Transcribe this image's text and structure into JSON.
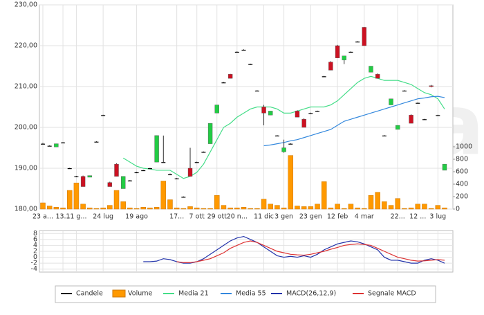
{
  "watermark": "teleborsa",
  "chart_data": [
    {
      "type": "candlestick",
      "categories": [
        "23 a...",
        null,
        null,
        "13...",
        null,
        "11 g...",
        null,
        null,
        null,
        "24 lug",
        null,
        null,
        null,
        null,
        "19 ago",
        null,
        null,
        null,
        null,
        null,
        "17...",
        null,
        null,
        "7 ott",
        null,
        null,
        "29 ott",
        null,
        null,
        "20 n...",
        null,
        null,
        null,
        "11 dic",
        null,
        null,
        "3 gen",
        null,
        null,
        null,
        "23 gen",
        null,
        null,
        null,
        "12 feb",
        null,
        null,
        null,
        "4 mar",
        null,
        null,
        null,
        null,
        "22...",
        null,
        null,
        "12 ...",
        null,
        null,
        "3 lug",
        null
      ],
      "series": [
        {
          "name": "Candele",
          "type": "candlestick",
          "color": "#000000",
          "up_color": "#22cc44",
          "down_color": "#cc1122",
          "open": [
            196,
            195.5,
            195.2,
            196.3,
            190,
            188,
            188,
            187.8,
            196.5,
            203,
            186.5,
            191,
            185,
            187,
            189,
            189.5,
            190,
            191.5,
            191.5,
            188.5,
            187.5,
            183,
            190,
            191.5,
            194,
            196,
            203.5,
            211,
            213,
            218.5,
            219,
            215.5,
            209,
            205,
            203,
            198,
            194,
            196,
            204,
            202,
            203.5,
            204,
            212.5,
            216,
            220,
            216.5,
            218.5,
            221,
            224.5,
            213.5,
            213,
            198,
            205.5,
            199.5,
            209,
            203,
            206,
            202,
            210.2,
            203,
            189.5
          ],
          "high": [
            196.2,
            195.6,
            196,
            196.4,
            190.1,
            188.1,
            188.2,
            188.2,
            196.6,
            203.1,
            186.7,
            191.2,
            188,
            187.1,
            189.1,
            189.6,
            190.1,
            198,
            198,
            188.7,
            187.6,
            183.1,
            195,
            191.6,
            194.1,
            201,
            205.5,
            211.1,
            213.1,
            218.6,
            219.1,
            215.6,
            209.1,
            205.5,
            204,
            198.1,
            197,
            196.1,
            204.2,
            202.2,
            203.6,
            204.1,
            212.6,
            216.2,
            220.2,
            217.5,
            218.6,
            221.1,
            224.6,
            215,
            213.2,
            198.1,
            207,
            200.5,
            209.1,
            203.2,
            206.1,
            202.1,
            210.4,
            203.1,
            191
          ],
          "low": [
            195.8,
            195.4,
            195.2,
            196.2,
            189.9,
            187.8,
            185.5,
            187.8,
            196.4,
            202.9,
            185.5,
            188,
            185,
            186.9,
            188.9,
            189.4,
            189.9,
            191.5,
            191.5,
            188.3,
            187.4,
            182.9,
            188,
            191.4,
            193.9,
            196,
            203.5,
            210.9,
            212,
            218.4,
            218.9,
            215.4,
            208.9,
            200.5,
            203,
            197.9,
            193.8,
            195.9,
            202.5,
            200,
            203.4,
            203.9,
            212.4,
            214,
            217,
            215.5,
            218.4,
            220.9,
            220,
            213.5,
            212,
            197.9,
            205.5,
            199.5,
            208.9,
            201,
            205.9,
            201.9,
            209.8,
            202.9,
            189.5
          ],
          "close": [
            196,
            195.5,
            196,
            196.3,
            190,
            188,
            185.5,
            188.2,
            196.5,
            203,
            185.5,
            188,
            188,
            187,
            189,
            189.5,
            190,
            198,
            191.5,
            188.5,
            187.5,
            183,
            188,
            191.5,
            194,
            201,
            205.5,
            211,
            212,
            218.5,
            219,
            215.5,
            209,
            203.5,
            204,
            198,
            195,
            196,
            202.5,
            200,
            203.5,
            204,
            212.5,
            214,
            217,
            217.5,
            218.5,
            221,
            220,
            215,
            212,
            198,
            207,
            200.5,
            209,
            201,
            206,
            202,
            210,
            203,
            191
          ]
        },
        {
          "name": "Volume",
          "type": "bar",
          "axis": "y2",
          "color": "#ff9900",
          "values": [
            100,
            50,
            30,
            20,
            300,
            420,
            80,
            20,
            10,
            20,
            60,
            300,
            120,
            20,
            10,
            30,
            20,
            30,
            450,
            150,
            20,
            10,
            40,
            20,
            10,
            10,
            220,
            60,
            20,
            20,
            30,
            10,
            10,
            160,
            80,
            60,
            20,
            860,
            50,
            40,
            40,
            80,
            440,
            20,
            80,
            10,
            80,
            20,
            10,
            220,
            270,
            120,
            60,
            170,
            10,
            20,
            80,
            80,
            10,
            60,
            20
          ]
        },
        {
          "name": "Media 21",
          "type": "line",
          "color": "#44dd88",
          "values": [
            null,
            null,
            null,
            null,
            null,
            null,
            null,
            null,
            null,
            null,
            null,
            null,
            192.5,
            191.5,
            190.5,
            190,
            189.8,
            189.5,
            189.5,
            189.5,
            188.5,
            187.5,
            188,
            189,
            191,
            194,
            197,
            200,
            201,
            202.5,
            203.5,
            204.5,
            205,
            205,
            205,
            204.5,
            203.5,
            203.5,
            204,
            204.5,
            205,
            205,
            205,
            205.5,
            206.5,
            208,
            209.5,
            211,
            212,
            212.5,
            212,
            211.5,
            211.5,
            211.5,
            211,
            210.5,
            209.5,
            208.5,
            208,
            207,
            204.5
          ]
        },
        {
          "name": "Media 55",
          "type": "line",
          "color": "#3388dd",
          "values": [
            null,
            null,
            null,
            null,
            null,
            null,
            null,
            null,
            null,
            null,
            null,
            null,
            null,
            null,
            null,
            null,
            null,
            null,
            null,
            null,
            null,
            null,
            null,
            null,
            null,
            null,
            null,
            null,
            null,
            null,
            null,
            null,
            null,
            195.5,
            195.7,
            196,
            196.3,
            196.7,
            197,
            197.5,
            198,
            198.5,
            199,
            199.5,
            200.5,
            201.5,
            202,
            202.5,
            203,
            203.5,
            204,
            204.5,
            205,
            205.5,
            206,
            206.5,
            207,
            207.2,
            207.5,
            207.6,
            207.3
          ]
        }
      ],
      "ylim": [
        180,
        230
      ],
      "yticks": [
        {
          "value": 180,
          "label": "180,00"
        },
        {
          "value": 190,
          "label": "190,00"
        },
        {
          "value": 200,
          "label": "200,00"
        },
        {
          "value": 210,
          "label": "210,00"
        },
        {
          "value": 220,
          "label": "220,00"
        },
        {
          "value": 230,
          "label": "230,00"
        }
      ],
      "y2lim": [
        0,
        1000
      ],
      "y2ticks": [
        0,
        200,
        400,
        600,
        800,
        1000
      ],
      "grid": true
    },
    {
      "type": "line",
      "series": [
        {
          "name": "MACD(26,12,9)",
          "color": "#2233aa",
          "values": [
            null,
            null,
            null,
            null,
            null,
            null,
            null,
            null,
            null,
            null,
            null,
            null,
            null,
            null,
            null,
            -1.5,
            -1.5,
            -1.3,
            -0.5,
            -0.8,
            -1.5,
            -2,
            -2,
            -1.5,
            -0.5,
            1,
            2.5,
            4,
            5.5,
            6.5,
            7,
            6,
            5,
            3.5,
            2,
            0.5,
            0,
            0.3,
            0,
            0.5,
            0,
            1,
            2.5,
            3.5,
            4.5,
            5,
            5.5,
            5.2,
            4.5,
            3.5,
            2.5,
            0,
            -1,
            -1,
            -1.5,
            -2,
            -2,
            -1,
            -0.5,
            -1,
            -2
          ]
        },
        {
          "name": "Segnale MACD",
          "color": "#dd3333",
          "values": [
            null,
            null,
            null,
            null,
            null,
            null,
            null,
            null,
            null,
            null,
            null,
            null,
            null,
            null,
            null,
            null,
            null,
            null,
            null,
            null,
            -1.5,
            -1.8,
            -1.8,
            -1.5,
            -1,
            -0.5,
            0.5,
            1.5,
            3,
            4,
            5,
            5.5,
            5,
            4,
            3,
            2,
            1.5,
            1,
            0.8,
            0.7,
            1,
            1.5,
            2,
            2.7,
            3.3,
            4,
            4.3,
            4.5,
            4.3,
            4,
            3,
            2,
            1,
            0,
            -0.5,
            -1,
            -1.3,
            -1.2,
            -1,
            -0.8,
            -1
          ]
        }
      ],
      "ylim": [
        -5,
        9
      ],
      "yticks": [
        -4,
        -2,
        0,
        2,
        4,
        6,
        8
      ],
      "grid": true
    }
  ]
}
